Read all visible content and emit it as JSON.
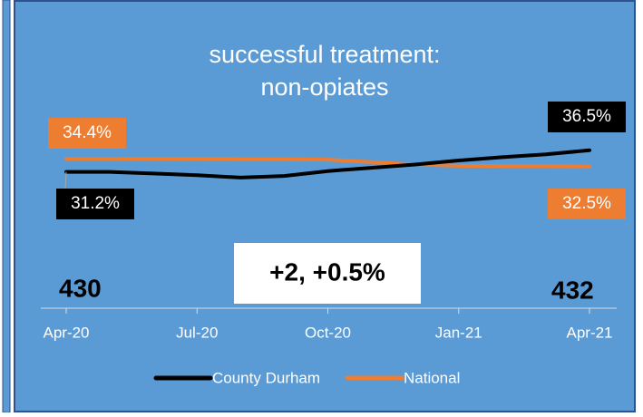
{
  "chart_data": {
    "type": "line",
    "title": [
      "successful treatment:",
      "non-opiates"
    ],
    "categories": [
      "Apr-20",
      null,
      null,
      "Jul-20",
      null,
      null,
      "Oct-20",
      null,
      null,
      "Jan-21",
      null,
      null,
      "Apr-21"
    ],
    "series": [
      {
        "name": "County Durham",
        "color": "#000000",
        "values": [
          31.2,
          31.2,
          30.8,
          30.4,
          29.8,
          30.2,
          31.4,
          32.2,
          33.0,
          34.0,
          34.8,
          35.5,
          36.5
        ],
        "value_labels": [
          "31.2%",
          null,
          null,
          null,
          null,
          null,
          null,
          null,
          null,
          null,
          null,
          null,
          "36.5%"
        ]
      },
      {
        "name": "National",
        "color": "#ed7d31",
        "values": [
          34.4,
          34.4,
          34.4,
          34.4,
          34.3,
          34.3,
          34.2,
          33.6,
          33.0,
          32.7,
          32.6,
          32.6,
          32.5
        ],
        "value_labels": [
          "34.4%",
          null,
          null,
          null,
          null,
          null,
          null,
          null,
          null,
          null,
          null,
          null,
          "32.5%"
        ]
      }
    ],
    "ylim": [
      20,
      45
    ],
    "annotations": [
      "430",
      "+2, +0.5%",
      "432"
    ]
  }
}
